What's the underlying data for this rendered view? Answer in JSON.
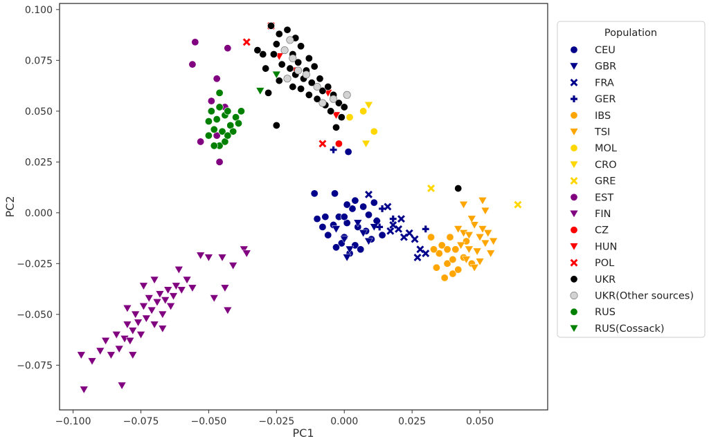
{
  "chart_data": {
    "type": "scatter",
    "xlabel": "PC1",
    "ylabel": "PC2",
    "xlim": [
      -0.105,
      0.075
    ],
    "ylim": [
      -0.097,
      0.103
    ],
    "x_ticks": [
      -0.1,
      -0.075,
      -0.05,
      -0.025,
      0.0,
      0.025,
      0.05
    ],
    "x_tick_labels": [
      "−0.100",
      "−0.075",
      "−0.050",
      "−0.025",
      "0.000",
      "0.025",
      "0.050"
    ],
    "y_ticks": [
      -0.075,
      -0.05,
      -0.025,
      0.0,
      0.025,
      0.05,
      0.075,
      0.1
    ],
    "y_tick_labels": [
      "−0.075",
      "−0.050",
      "−0.025",
      "0.000",
      "0.025",
      "0.050",
      "0.075",
      "0.100"
    ],
    "grid": false,
    "legend": {
      "title": "Population",
      "placement": "outside-right"
    },
    "series": [
      {
        "name": "CEU",
        "marker": "circle",
        "color": "#00008B",
        "points": [
          [
            -0.011,
            0.0095
          ],
          [
            -0.0035,
            0.0095
          ],
          [
            -0.007,
            -0.002
          ],
          [
            -0.004,
            -0.006
          ],
          [
            0.0,
            -0.012
          ],
          [
            0.004,
            -0.016
          ],
          [
            0.008,
            -0.009
          ],
          [
            0.012,
            -0.004
          ],
          [
            -0.002,
            -0.002
          ],
          [
            0.003,
            0.002
          ],
          [
            0.007,
            0.003
          ],
          [
            -0.006,
            -0.011
          ],
          [
            0.002,
            -0.02
          ],
          [
            0.01,
            -0.013
          ],
          [
            0.001,
            -0.005
          ],
          [
            -0.001,
            -0.015
          ],
          [
            0.006,
            -0.018
          ],
          [
            -0.003,
            -0.017
          ],
          [
            0.009,
            -0.001
          ],
          [
            0.005,
            -0.007
          ],
          [
            -0.01,
            -0.003
          ],
          [
            0.014,
            -0.011
          ],
          [
            0.011,
            0.005
          ],
          [
            0.004,
            0.006
          ],
          [
            -0.008,
            -0.007
          ],
          [
            0.001,
            0.004
          ],
          [
            0.0,
            -0.002
          ],
          [
            0.0015,
            0.03
          ]
        ]
      },
      {
        "name": "GBR",
        "marker": "triangle-down",
        "color": "#00008B",
        "points": [
          [
            0.0,
            -0.013
          ],
          [
            0.005,
            -0.005
          ],
          [
            0.009,
            -0.014
          ],
          [
            -0.003,
            -0.008
          ],
          [
            0.002,
            -0.018
          ],
          [
            0.007,
            -0.01
          ],
          [
            0.011,
            -0.007
          ],
          [
            0.001,
            -0.022
          ]
        ]
      },
      {
        "name": "FRA",
        "marker": "x",
        "color": "#00008B",
        "points": [
          [
            0.009,
            0.009
          ],
          [
            0.016,
            0.003
          ],
          [
            0.018,
            -0.006
          ],
          [
            0.02,
            -0.008
          ],
          [
            0.022,
            -0.012
          ],
          [
            0.024,
            -0.01
          ],
          [
            0.026,
            -0.013
          ],
          [
            0.021,
            -0.003
          ],
          [
            0.028,
            -0.018
          ],
          [
            0.03,
            -0.02
          ],
          [
            0.027,
            -0.022
          ],
          [
            0.017,
            -0.009
          ]
        ]
      },
      {
        "name": "GER",
        "marker": "plus",
        "color": "#00008B",
        "points": [
          [
            -0.004,
            0.031
          ],
          [
            0.012,
            -0.004
          ],
          [
            0.014,
            0.002
          ],
          [
            0.018,
            -0.003
          ],
          [
            0.03,
            -0.008
          ],
          [
            0.013,
            -0.007
          ]
        ]
      },
      {
        "name": "IBS",
        "marker": "circle",
        "color": "#FFA500",
        "points": [
          [
            0.032,
            -0.012
          ],
          [
            0.035,
            -0.02
          ],
          [
            0.038,
            -0.025
          ],
          [
            0.04,
            -0.03
          ],
          [
            0.036,
            -0.016
          ],
          [
            0.041,
            -0.018
          ],
          [
            0.044,
            -0.022
          ],
          [
            0.039,
            -0.012
          ],
          [
            0.034,
            -0.027
          ],
          [
            0.042,
            -0.028
          ],
          [
            0.037,
            -0.032
          ],
          [
            0.045,
            -0.014
          ],
          [
            0.033,
            -0.018
          ],
          [
            0.047,
            -0.025
          ],
          [
            0.04,
            -0.023
          ],
          [
            0.038,
            -0.018
          ]
        ]
      },
      {
        "name": "TSI",
        "marker": "triangle-down",
        "color": "#FFA500",
        "points": [
          [
            0.044,
            -0.01
          ],
          [
            0.048,
            -0.006
          ],
          [
            0.05,
            -0.012
          ],
          [
            0.046,
            -0.018
          ],
          [
            0.052,
            -0.015
          ],
          [
            0.054,
            -0.02
          ],
          [
            0.05,
            -0.024
          ],
          [
            0.043,
            -0.016
          ],
          [
            0.047,
            -0.003
          ],
          [
            0.051,
            -0.008
          ],
          [
            0.055,
            -0.014
          ],
          [
            0.049,
            -0.019
          ],
          [
            0.053,
            -0.01
          ],
          [
            0.045,
            -0.023
          ],
          [
            0.046,
            -0.011
          ],
          [
            0.052,
            0.001
          ],
          [
            0.044,
            0.004
          ],
          [
            0.048,
            -0.027
          ],
          [
            0.051,
            0.006
          ],
          [
            0.042,
            -0.008
          ]
        ]
      },
      {
        "name": "MOL",
        "marker": "circle",
        "color": "#FFD700",
        "points": [
          [
            0.011,
            0.04
          ],
          [
            0.007,
            0.05
          ],
          [
            0.002,
            0.047
          ]
        ]
      },
      {
        "name": "CRO",
        "marker": "triangle-down",
        "color": "#FFD700",
        "points": [
          [
            0.009,
            0.053
          ],
          [
            0.008,
            0.034
          ]
        ]
      },
      {
        "name": "GRE",
        "marker": "x",
        "color": "#FFD700",
        "points": [
          [
            0.032,
            0.012
          ],
          [
            0.064,
            0.004
          ]
        ]
      },
      {
        "name": "EST",
        "marker": "circle",
        "color": "#800080",
        "points": [
          [
            -0.055,
            0.084
          ],
          [
            -0.056,
            0.073
          ],
          [
            -0.043,
            0.081
          ],
          [
            -0.047,
            0.066
          ],
          [
            -0.049,
            0.055
          ],
          [
            -0.053,
            0.035
          ],
          [
            -0.046,
            0.025
          ],
          [
            -0.044,
            0.052
          ],
          [
            -0.047,
            0.038
          ]
        ]
      },
      {
        "name": "FIN",
        "marker": "triangle-down",
        "color": "#800080",
        "points": [
          [
            -0.097,
            -0.07
          ],
          [
            -0.096,
            -0.087
          ],
          [
            -0.093,
            -0.073
          ],
          [
            -0.09,
            -0.068
          ],
          [
            -0.088,
            -0.063
          ],
          [
            -0.086,
            -0.07
          ],
          [
            -0.084,
            -0.06
          ],
          [
            -0.083,
            -0.067
          ],
          [
            -0.082,
            -0.085
          ],
          [
            -0.081,
            -0.062
          ],
          [
            -0.08,
            -0.055
          ],
          [
            -0.079,
            -0.063
          ],
          [
            -0.078,
            -0.058
          ],
          [
            -0.077,
            -0.05
          ],
          [
            -0.076,
            -0.054
          ],
          [
            -0.075,
            -0.06
          ],
          [
            -0.074,
            -0.046
          ],
          [
            -0.073,
            -0.052
          ],
          [
            -0.072,
            -0.042
          ],
          [
            -0.071,
            -0.048
          ],
          [
            -0.07,
            -0.055
          ],
          [
            -0.069,
            -0.044
          ],
          [
            -0.068,
            -0.04
          ],
          [
            -0.067,
            -0.05
          ],
          [
            -0.066,
            -0.043
          ],
          [
            -0.065,
            -0.038
          ],
          [
            -0.064,
            -0.046
          ],
          [
            -0.063,
            -0.041
          ],
          [
            -0.062,
            -0.036
          ],
          [
            -0.061,
            -0.028
          ],
          [
            -0.06,
            -0.038
          ],
          [
            -0.058,
            -0.033
          ],
          [
            -0.056,
            -0.037
          ],
          [
            -0.053,
            -0.021
          ],
          [
            -0.05,
            -0.022
          ],
          [
            -0.048,
            -0.042
          ],
          [
            -0.045,
            -0.022
          ],
          [
            -0.044,
            -0.037
          ],
          [
            -0.043,
            -0.048
          ],
          [
            -0.041,
            -0.026
          ],
          [
            -0.037,
            -0.018
          ],
          [
            -0.036,
            -0.02
          ],
          [
            -0.078,
            -0.07
          ],
          [
            -0.08,
            -0.047
          ],
          [
            -0.07,
            -0.033
          ],
          [
            -0.067,
            -0.057
          ],
          [
            -0.074,
            -0.036
          ]
        ]
      },
      {
        "name": "CZ",
        "marker": "circle",
        "color": "#FF0000",
        "points": [
          [
            -0.002,
            0.034
          ]
        ]
      },
      {
        "name": "HUN",
        "marker": "triangle-down",
        "color": "#FF0000",
        "points": [
          [
            -0.006,
            0.059
          ],
          [
            -0.018,
            0.07
          ],
          [
            -0.024,
            0.077
          ],
          [
            -0.003,
            0.048
          ]
        ]
      },
      {
        "name": "POL",
        "marker": "x",
        "color": "#FF0000",
        "points": [
          [
            -0.036,
            0.084
          ],
          [
            -0.008,
            0.034
          ],
          [
            -0.027,
            0.092
          ]
        ]
      },
      {
        "name": "UKR",
        "marker": "circle",
        "color": "#000000",
        "points": [
          [
            -0.027,
            0.092
          ],
          [
            -0.024,
            0.088
          ],
          [
            -0.021,
            0.09
          ],
          [
            -0.018,
            0.086
          ],
          [
            -0.025,
            0.083
          ],
          [
            -0.022,
            0.08
          ],
          [
            -0.019,
            0.078
          ],
          [
            -0.016,
            0.082
          ],
          [
            -0.013,
            0.076
          ],
          [
            -0.026,
            0.078
          ],
          [
            -0.023,
            0.073
          ],
          [
            -0.02,
            0.071
          ],
          [
            -0.017,
            0.074
          ],
          [
            -0.014,
            0.07
          ],
          [
            -0.011,
            0.072
          ],
          [
            -0.009,
            0.066
          ],
          [
            -0.012,
            0.064
          ],
          [
            -0.015,
            0.066
          ],
          [
            -0.018,
            0.068
          ],
          [
            -0.021,
            0.066
          ],
          [
            -0.008,
            0.06
          ],
          [
            -0.006,
            0.062
          ],
          [
            -0.004,
            0.058
          ],
          [
            -0.01,
            0.056
          ],
          [
            -0.002,
            0.054
          ],
          [
            -0.005,
            0.05
          ],
          [
            0.0,
            0.052
          ],
          [
            -0.001,
            0.047
          ],
          [
            -0.003,
            0.042
          ],
          [
            -0.025,
            0.043
          ],
          [
            -0.028,
            0.059
          ],
          [
            -0.03,
            0.078
          ],
          [
            -0.032,
            0.08
          ],
          [
            -0.013,
            0.058
          ],
          [
            -0.016,
            0.061
          ],
          [
            0.042,
            0.012
          ],
          [
            -0.007,
            0.053
          ],
          [
            -0.024,
            0.065
          ],
          [
            -0.029,
            0.071
          ],
          [
            -0.019,
            0.062
          ]
        ]
      },
      {
        "name": "UKR(Other sources)",
        "marker": "circle",
        "color": "#D3D3D3",
        "points": [
          [
            -0.022,
            0.08
          ],
          [
            -0.019,
            0.076
          ],
          [
            -0.017,
            0.07
          ],
          [
            -0.014,
            0.068
          ],
          [
            -0.02,
            0.085
          ],
          [
            0.001,
            0.058
          ],
          [
            -0.004,
            0.056
          ],
          [
            -0.01,
            0.062
          ],
          [
            -0.021,
            0.066
          ],
          [
            -0.008,
            0.054
          ]
        ]
      },
      {
        "name": "RUS",
        "marker": "circle",
        "color": "#008000",
        "points": [
          [
            -0.046,
            0.059
          ],
          [
            -0.049,
            0.05
          ],
          [
            -0.047,
            0.046
          ],
          [
            -0.044,
            0.048
          ],
          [
            -0.042,
            0.043
          ],
          [
            -0.045,
            0.04
          ],
          [
            -0.048,
            0.041
          ],
          [
            -0.05,
            0.038
          ],
          [
            -0.043,
            0.05
          ],
          [
            -0.04,
            0.047
          ],
          [
            -0.038,
            0.05
          ],
          [
            -0.041,
            0.04
          ],
          [
            -0.046,
            0.033
          ],
          [
            -0.048,
            0.033
          ],
          [
            -0.044,
            0.035
          ],
          [
            -0.043,
            0.038
          ],
          [
            -0.046,
            0.052
          ],
          [
            -0.05,
            0.045
          ],
          [
            -0.039,
            0.044
          ]
        ]
      },
      {
        "name": "RUS(Cossack)",
        "marker": "triangle-down",
        "color": "#008000",
        "points": [
          [
            -0.031,
            0.06
          ],
          [
            -0.025,
            0.068
          ]
        ]
      }
    ]
  }
}
